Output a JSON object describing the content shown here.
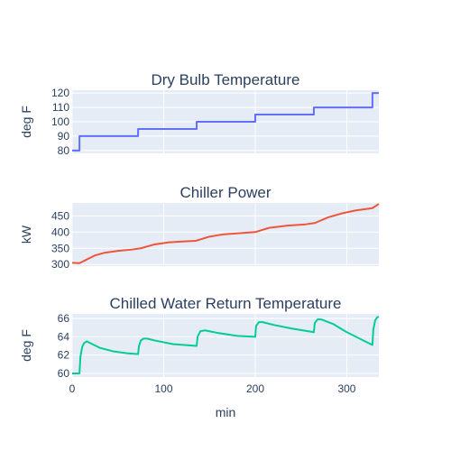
{
  "chart_data": [
    {
      "type": "line",
      "title": "Dry Bulb Temperature",
      "ylabel": "deg F",
      "color": "#636efa",
      "ylim": [
        78,
        122
      ],
      "yticks": [
        80,
        90,
        100,
        110,
        120
      ],
      "xlim": [
        0,
        335
      ],
      "x": [
        0,
        8,
        8,
        72,
        72,
        136,
        136,
        200,
        200,
        264,
        264,
        328,
        328,
        335
      ],
      "values": [
        80,
        80,
        90,
        90,
        95,
        95,
        100,
        100,
        105,
        105,
        110,
        110,
        120,
        120
      ]
    },
    {
      "type": "line",
      "title": "Chiller Power",
      "ylabel": "kW",
      "color": "#ef553b",
      "ylim": [
        295,
        490
      ],
      "yticks": [
        300,
        350,
        400,
        450
      ],
      "xlim": [
        0,
        335
      ],
      "x": [
        0,
        8,
        15,
        25,
        35,
        50,
        65,
        75,
        90,
        105,
        120,
        135,
        150,
        165,
        180,
        200,
        215,
        235,
        255,
        265,
        280,
        295,
        310,
        328,
        335
      ],
      "values": [
        305,
        304,
        314,
        328,
        336,
        342,
        346,
        350,
        362,
        368,
        371,
        373,
        386,
        393,
        396,
        400,
        413,
        420,
        424,
        428,
        446,
        458,
        467,
        474,
        487
      ]
    },
    {
      "type": "line",
      "title": "Chilled Water Return Temperature",
      "ylabel": "deg F",
      "xlabel": "min",
      "color": "#00cc96",
      "ylim": [
        59.6,
        66.5
      ],
      "yticks": [
        60,
        62,
        64,
        66
      ],
      "xlim": [
        0,
        335
      ],
      "xticks": [
        0,
        100,
        200,
        300
      ],
      "x": [
        0,
        8,
        9,
        11,
        13,
        16,
        20,
        30,
        45,
        60,
        72,
        73,
        75,
        78,
        82,
        90,
        110,
        136,
        137,
        140,
        145,
        160,
        180,
        200,
        201,
        204,
        208,
        220,
        240,
        264,
        265,
        268,
        272,
        285,
        300,
        328,
        329,
        331,
        333,
        335
      ],
      "values": [
        60,
        60,
        61.8,
        62.9,
        63.3,
        63.5,
        63.3,
        62.8,
        62.4,
        62.2,
        62.1,
        63.0,
        63.6,
        63.8,
        63.8,
        63.6,
        63.2,
        63.0,
        64.0,
        64.6,
        64.7,
        64.4,
        64.1,
        64.0,
        65.2,
        65.6,
        65.6,
        65.3,
        64.9,
        64.5,
        65.5,
        65.9,
        65.9,
        65.4,
        64.5,
        63.1,
        64.8,
        65.8,
        66.1,
        66.2
      ]
    }
  ]
}
